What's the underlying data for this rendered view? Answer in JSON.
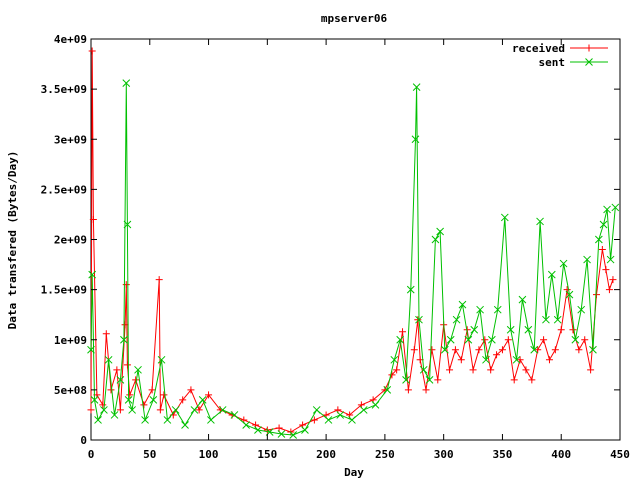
{
  "chart_data": {
    "type": "line",
    "title": "mpserver06",
    "xlabel": "Day",
    "ylabel": "Data transfered (Bytes/Day)",
    "xlim": [
      0,
      450
    ],
    "ylim": [
      0,
      4000000000
    ],
    "x_ticks": [
      0,
      50,
      100,
      150,
      200,
      250,
      300,
      350,
      400,
      450
    ],
    "x_tick_labels": [
      "0",
      "50",
      "100",
      "150",
      "200",
      "250",
      "300",
      "350",
      "400",
      "450"
    ],
    "y_ticks": [
      0,
      500000000,
      1000000000,
      1500000000,
      2000000000,
      2500000000,
      3000000000,
      3500000000,
      4000000000
    ],
    "y_tick_labels": [
      "0",
      "5e+08",
      "1e+09",
      "1.5e+09",
      "2e+09",
      "2.5e+09",
      "3e+09",
      "3.5e+09",
      "4e+09"
    ],
    "grid": false,
    "legend_position": "top-right",
    "series": [
      {
        "name": "received",
        "color": "#ff0000",
        "marker": "plus",
        "x": [
          0,
          1,
          2,
          5,
          10,
          13,
          17,
          22,
          25,
          29,
          30,
          31,
          33,
          38,
          45,
          52,
          58,
          59,
          62,
          70,
          78,
          85,
          92,
          100,
          110,
          120,
          130,
          140,
          150,
          160,
          170,
          180,
          190,
          200,
          210,
          220,
          230,
          240,
          250,
          256,
          260,
          265,
          270,
          275,
          278,
          280,
          285,
          290,
          295,
          300,
          305,
          310,
          315,
          320,
          325,
          330,
          335,
          340,
          345,
          350,
          355,
          360,
          365,
          370,
          375,
          380,
          385,
          390,
          395,
          400,
          405,
          410,
          415,
          420,
          425,
          430,
          435,
          438,
          441,
          444
        ],
        "y": [
          300000000,
          3880000000,
          2200000000,
          450000000,
          350000000,
          1060000000,
          500000000,
          700000000,
          300000000,
          1150000000,
          1550000000,
          750000000,
          450000000,
          600000000,
          350000000,
          500000000,
          1600000000,
          300000000,
          450000000,
          250000000,
          400000000,
          500000000,
          300000000,
          450000000,
          300000000,
          250000000,
          200000000,
          150000000,
          100000000,
          120000000,
          80000000,
          150000000,
          200000000,
          250000000,
          300000000,
          250000000,
          350000000,
          400000000,
          500000000,
          650000000,
          700000000,
          1080000000,
          500000000,
          900000000,
          1200000000,
          800000000,
          500000000,
          900000000,
          600000000,
          1150000000,
          700000000,
          900000000,
          800000000,
          1100000000,
          700000000,
          900000000,
          1000000000,
          700000000,
          850000000,
          900000000,
          1000000000,
          600000000,
          800000000,
          700000000,
          600000000,
          900000000,
          1000000000,
          800000000,
          900000000,
          1100000000,
          1500000000,
          1100000000,
          900000000,
          1000000000,
          700000000,
          1450000000,
          1900000000,
          1700000000,
          1500000000,
          1600000000
        ]
      },
      {
        "name": "sent",
        "color": "#00c000",
        "marker": "cross",
        "x": [
          0,
          1,
          3,
          6,
          11,
          15,
          20,
          25,
          28,
          30,
          31,
          32,
          35,
          40,
          46,
          53,
          60,
          65,
          72,
          80,
          88,
          95,
          102,
          112,
          122,
          132,
          142,
          152,
          162,
          172,
          182,
          192,
          202,
          212,
          222,
          232,
          242,
          252,
          258,
          263,
          268,
          272,
          276,
          277,
          279,
          283,
          288,
          293,
          297,
          301,
          306,
          311,
          316,
          321,
          326,
          331,
          336,
          341,
          346,
          352,
          357,
          362,
          367,
          372,
          377,
          382,
          387,
          392,
          397,
          402,
          407,
          412,
          417,
          422,
          427,
          432,
          436,
          439,
          442,
          446
        ],
        "y": [
          900000000,
          1650000000,
          400000000,
          200000000,
          300000000,
          800000000,
          250000000,
          600000000,
          1000000000,
          3560000000,
          2150000000,
          400000000,
          300000000,
          700000000,
          200000000,
          400000000,
          800000000,
          200000000,
          300000000,
          150000000,
          300000000,
          400000000,
          200000000,
          300000000,
          250000000,
          150000000,
          100000000,
          80000000,
          60000000,
          50000000,
          100000000,
          300000000,
          200000000,
          250000000,
          200000000,
          300000000,
          350000000,
          500000000,
          800000000,
          1000000000,
          600000000,
          1500000000,
          3000000000,
          3520000000,
          1200000000,
          700000000,
          600000000,
          2000000000,
          2080000000,
          900000000,
          1000000000,
          1200000000,
          1350000000,
          1000000000,
          1100000000,
          1300000000,
          800000000,
          1000000000,
          1300000000,
          2220000000,
          1100000000,
          800000000,
          1400000000,
          1100000000,
          900000000,
          2180000000,
          1200000000,
          1650000000,
          1200000000,
          1760000000,
          1450000000,
          1000000000,
          1300000000,
          1800000000,
          900000000,
          2000000000,
          2150000000,
          2300000000,
          1800000000,
          2320000000
        ]
      }
    ]
  }
}
